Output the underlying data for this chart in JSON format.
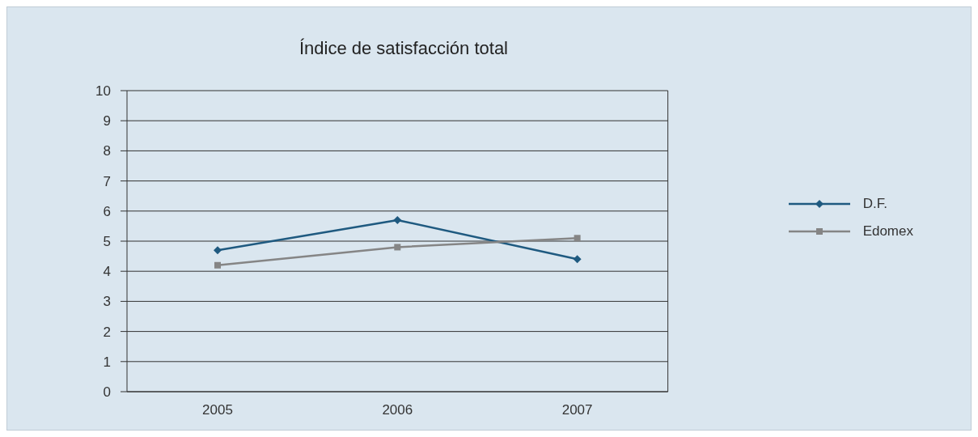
{
  "chart_data": {
    "type": "line",
    "title": "Índice de satisfacción total",
    "categories": [
      "2005",
      "2006",
      "2007"
    ],
    "series": [
      {
        "name": "D.F.",
        "color": "#1f5a80",
        "values": [
          4.7,
          5.7,
          4.4
        ],
        "marker": "diamond"
      },
      {
        "name": "Edomex",
        "color": "#858585",
        "values": [
          4.2,
          4.8,
          5.1
        ],
        "marker": "square"
      }
    ],
    "ylim": [
      0,
      10
    ],
    "yticks": [
      0,
      1,
      2,
      3,
      4,
      5,
      6,
      7,
      8,
      9,
      10
    ],
    "grid": "y",
    "legend": "right"
  }
}
